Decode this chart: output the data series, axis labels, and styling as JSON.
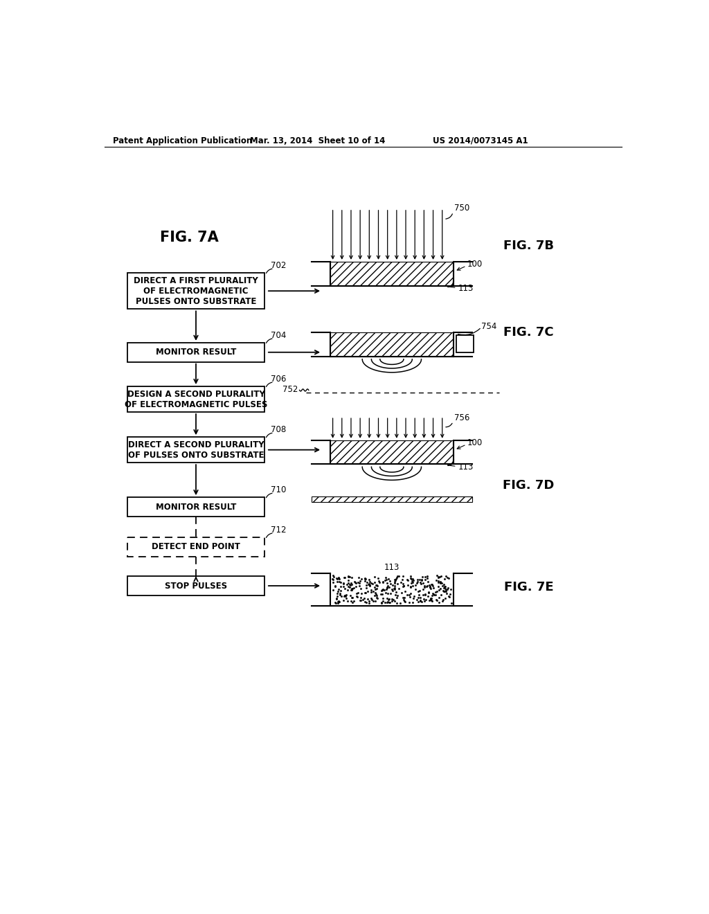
{
  "bg_color": "#ffffff",
  "header_text1": "Patent Application Publication",
  "header_text2": "Mar. 13, 2014  Sheet 10 of 14",
  "header_text3": "US 2014/0073145 A1",
  "fig7a_label": "FIG. 7A",
  "fig7b_label": "FIG. 7B",
  "fig7c_label": "FIG. 7C",
  "fig7d_label": "FIG. 7D",
  "fig7e_label": "FIG. 7E",
  "box702": "DIRECT A FIRST PLURALITY\nOF ELECTROMAGNETIC\nPULSES ONTO SUBSTRATE",
  "box704": "MONITOR RESULT",
  "box706": "DESIGN A SECOND PLURALITY\nOF ELECTROMAGNETIC PULSES",
  "box708": "DIRECT A SECOND PLURALITY\nOF PULSES ONTO SUBSTRATE",
  "box710": "MONITOR RESULT",
  "box712": "DETECT END POINT",
  "box714": "STOP PULSES",
  "label_750": "750",
  "label_754": "754",
  "label_756": "756",
  "label_100a": "100",
  "label_100b": "100",
  "label_113a": "113",
  "label_113b": "113",
  "label_113c": "113",
  "label_752": "752",
  "label_702": "702",
  "label_704": "704",
  "label_706": "706",
  "label_708": "708",
  "label_710": "710",
  "label_712": "712"
}
